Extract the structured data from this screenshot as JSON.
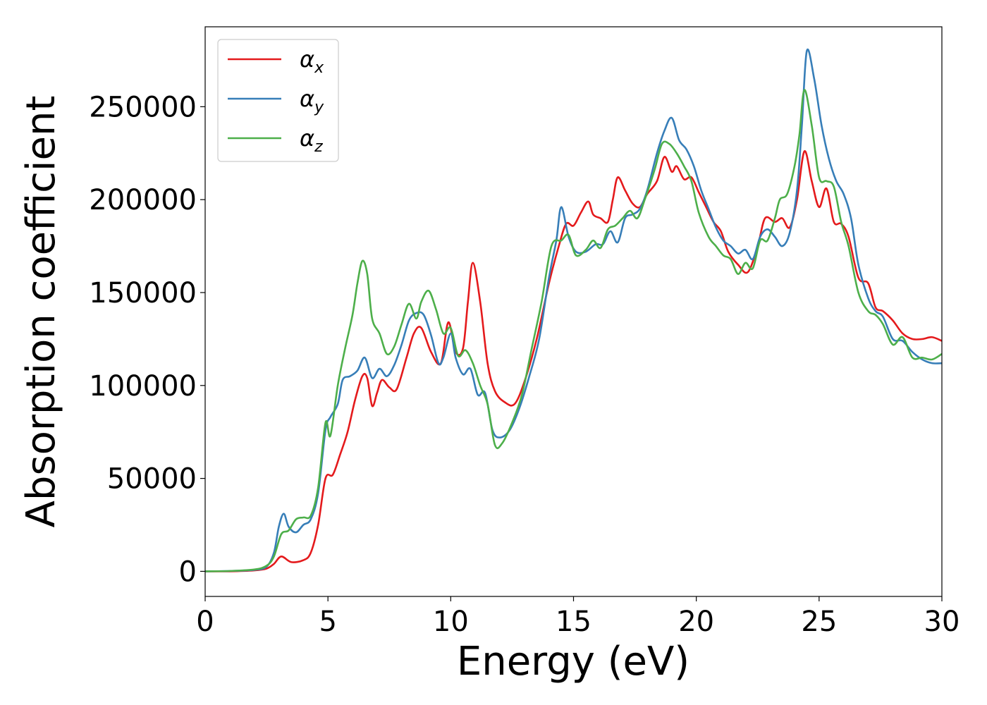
{
  "chart_data": {
    "type": "line",
    "title": "",
    "xlabel": "Energy (eV)",
    "ylabel": "Absorption coefficient",
    "xlim": [
      0,
      30
    ],
    "ylim": [
      -13500,
      293000
    ],
    "xticks": [
      0,
      5,
      10,
      15,
      20,
      25,
      30
    ],
    "xtick_labels": [
      "0",
      "5",
      "10",
      "15",
      "20",
      "25",
      "30"
    ],
    "yticks": [
      0,
      50000,
      100000,
      150000,
      200000,
      250000
    ],
    "ytick_labels": [
      "0",
      "50000",
      "100000",
      "150000",
      "200000",
      "250000"
    ],
    "grid": false,
    "legend_position": "top-left",
    "series": [
      {
        "name": "α",
        "subscript": "x",
        "color": "#e41a1c",
        "points": [
          [
            0,
            0
          ],
          [
            1,
            0
          ],
          [
            2,
            500
          ],
          [
            2.5,
            1500
          ],
          [
            2.8,
            4000
          ],
          [
            3.1,
            8000
          ],
          [
            3.5,
            5000
          ],
          [
            4,
            6000
          ],
          [
            4.3,
            10000
          ],
          [
            4.6,
            25000
          ],
          [
            4.9,
            50000
          ],
          [
            5.2,
            52000
          ],
          [
            5.5,
            63000
          ],
          [
            5.8,
            75000
          ],
          [
            6.1,
            92000
          ],
          [
            6.4,
            105000
          ],
          [
            6.6,
            104000
          ],
          [
            6.8,
            89000
          ],
          [
            7,
            96000
          ],
          [
            7.2,
            103000
          ],
          [
            7.5,
            99000
          ],
          [
            7.8,
            98000
          ],
          [
            8.2,
            115000
          ],
          [
            8.5,
            128000
          ],
          [
            8.8,
            131000
          ],
          [
            9.2,
            118000
          ],
          [
            9.6,
            112000
          ],
          [
            9.9,
            134000
          ],
          [
            10.2,
            118000
          ],
          [
            10.5,
            120000
          ],
          [
            10.7,
            145000
          ],
          [
            10.9,
            166000
          ],
          [
            11.2,
            145000
          ],
          [
            11.5,
            112000
          ],
          [
            11.8,
            97000
          ],
          [
            12.2,
            91000
          ],
          [
            12.6,
            90000
          ],
          [
            13,
            102000
          ],
          [
            13.5,
            125000
          ],
          [
            14,
            155000
          ],
          [
            14.4,
            175000
          ],
          [
            14.7,
            187000
          ],
          [
            15,
            186000
          ],
          [
            15.3,
            193000
          ],
          [
            15.6,
            199000
          ],
          [
            15.8,
            192000
          ],
          [
            16.1,
            190000
          ],
          [
            16.4,
            188000
          ],
          [
            16.6,
            200000
          ],
          [
            16.8,
            212000
          ],
          [
            17.1,
            205000
          ],
          [
            17.4,
            198000
          ],
          [
            17.7,
            196000
          ],
          [
            18,
            203000
          ],
          [
            18.4,
            210000
          ],
          [
            18.7,
            223000
          ],
          [
            19,
            215000
          ],
          [
            19.2,
            218000
          ],
          [
            19.5,
            211000
          ],
          [
            19.8,
            212000
          ],
          [
            20.1,
            204000
          ],
          [
            20.4,
            196000
          ],
          [
            20.7,
            188000
          ],
          [
            21,
            183000
          ],
          [
            21.3,
            172000
          ],
          [
            21.7,
            165000
          ],
          [
            22.1,
            161000
          ],
          [
            22.5,
            175000
          ],
          [
            22.8,
            190000
          ],
          [
            23.2,
            188000
          ],
          [
            23.5,
            190000
          ],
          [
            23.8,
            185000
          ],
          [
            24.1,
            200000
          ],
          [
            24.4,
            226000
          ],
          [
            24.7,
            210000
          ],
          [
            25,
            196000
          ],
          [
            25.3,
            206000
          ],
          [
            25.6,
            188000
          ],
          [
            25.9,
            187000
          ],
          [
            26.2,
            180000
          ],
          [
            26.6,
            158000
          ],
          [
            27,
            155000
          ],
          [
            27.3,
            142000
          ],
          [
            27.6,
            140000
          ],
          [
            28,
            135000
          ],
          [
            28.4,
            128000
          ],
          [
            28.8,
            125000
          ],
          [
            29.2,
            125000
          ],
          [
            29.6,
            126000
          ],
          [
            30,
            124000
          ]
        ]
      },
      {
        "name": "α",
        "subscript": "y",
        "color": "#377eb8",
        "points": [
          [
            0,
            0
          ],
          [
            1,
            200
          ],
          [
            2,
            800
          ],
          [
            2.5,
            2500
          ],
          [
            2.8,
            10000
          ],
          [
            3,
            24000
          ],
          [
            3.2,
            31000
          ],
          [
            3.4,
            24000
          ],
          [
            3.7,
            21000
          ],
          [
            4,
            25000
          ],
          [
            4.3,
            28000
          ],
          [
            4.6,
            42000
          ],
          [
            4.9,
            76000
          ],
          [
            5.1,
            83000
          ],
          [
            5.4,
            90000
          ],
          [
            5.6,
            103000
          ],
          [
            5.9,
            105000
          ],
          [
            6.2,
            108000
          ],
          [
            6.5,
            115000
          ],
          [
            6.8,
            104000
          ],
          [
            7.1,
            109000
          ],
          [
            7.4,
            105000
          ],
          [
            7.7,
            111000
          ],
          [
            8,
            122000
          ],
          [
            8.3,
            135000
          ],
          [
            8.6,
            139000
          ],
          [
            8.9,
            138000
          ],
          [
            9.2,
            127000
          ],
          [
            9.5,
            112000
          ],
          [
            9.7,
            115000
          ],
          [
            10,
            128000
          ],
          [
            10.2,
            115000
          ],
          [
            10.5,
            106000
          ],
          [
            10.8,
            109000
          ],
          [
            11.1,
            95000
          ],
          [
            11.4,
            96000
          ],
          [
            11.7,
            76000
          ],
          [
            12,
            72000
          ],
          [
            12.4,
            76000
          ],
          [
            12.8,
            88000
          ],
          [
            13.2,
            105000
          ],
          [
            13.6,
            125000
          ],
          [
            14,
            158000
          ],
          [
            14.3,
            178000
          ],
          [
            14.5,
            196000
          ],
          [
            14.8,
            180000
          ],
          [
            15.1,
            172000
          ],
          [
            15.5,
            172000
          ],
          [
            15.9,
            176000
          ],
          [
            16.2,
            176000
          ],
          [
            16.5,
            183000
          ],
          [
            16.8,
            177000
          ],
          [
            17.1,
            190000
          ],
          [
            17.4,
            192000
          ],
          [
            17.7,
            195000
          ],
          [
            18,
            205000
          ],
          [
            18.4,
            225000
          ],
          [
            18.7,
            237000
          ],
          [
            19,
            244000
          ],
          [
            19.3,
            232000
          ],
          [
            19.6,
            227000
          ],
          [
            19.9,
            218000
          ],
          [
            20.2,
            205000
          ],
          [
            20.5,
            195000
          ],
          [
            20.8,
            185000
          ],
          [
            21.1,
            178000
          ],
          [
            21.4,
            175000
          ],
          [
            21.7,
            171000
          ],
          [
            22,
            173000
          ],
          [
            22.3,
            168000
          ],
          [
            22.6,
            180000
          ],
          [
            22.9,
            184000
          ],
          [
            23.2,
            180000
          ],
          [
            23.5,
            175000
          ],
          [
            23.8,
            182000
          ],
          [
            24.1,
            205000
          ],
          [
            24.3,
            240000
          ],
          [
            24.5,
            280000
          ],
          [
            24.8,
            265000
          ],
          [
            25.1,
            240000
          ],
          [
            25.4,
            222000
          ],
          [
            25.7,
            210000
          ],
          [
            26,
            203000
          ],
          [
            26.3,
            190000
          ],
          [
            26.6,
            165000
          ],
          [
            27,
            147000
          ],
          [
            27.3,
            140000
          ],
          [
            27.6,
            137000
          ],
          [
            28,
            125000
          ],
          [
            28.4,
            124000
          ],
          [
            28.8,
            118000
          ],
          [
            29.2,
            114000
          ],
          [
            29.6,
            112000
          ],
          [
            30,
            112000
          ]
        ]
      },
      {
        "name": "α",
        "subscript": "z",
        "color": "#4daf4a",
        "points": [
          [
            0,
            0
          ],
          [
            1,
            200
          ],
          [
            2,
            1000
          ],
          [
            2.5,
            3000
          ],
          [
            2.8,
            8000
          ],
          [
            3.1,
            20000
          ],
          [
            3.4,
            22000
          ],
          [
            3.7,
            28000
          ],
          [
            4,
            29000
          ],
          [
            4.3,
            30000
          ],
          [
            4.6,
            45000
          ],
          [
            4.9,
            80000
          ],
          [
            5.1,
            73000
          ],
          [
            5.4,
            100000
          ],
          [
            5.7,
            120000
          ],
          [
            6,
            138000
          ],
          [
            6.2,
            155000
          ],
          [
            6.4,
            167000
          ],
          [
            6.6,
            160000
          ],
          [
            6.8,
            136000
          ],
          [
            7.1,
            128000
          ],
          [
            7.4,
            117000
          ],
          [
            7.7,
            121000
          ],
          [
            8,
            133000
          ],
          [
            8.3,
            144000
          ],
          [
            8.6,
            136000
          ],
          [
            8.8,
            145000
          ],
          [
            9.1,
            151000
          ],
          [
            9.4,
            141000
          ],
          [
            9.7,
            128000
          ],
          [
            10,
            131000
          ],
          [
            10.3,
            116000
          ],
          [
            10.6,
            119000
          ],
          [
            10.9,
            112000
          ],
          [
            11.2,
            100000
          ],
          [
            11.5,
            90000
          ],
          [
            11.8,
            68000
          ],
          [
            12.1,
            69000
          ],
          [
            12.5,
            80000
          ],
          [
            12.9,
            95000
          ],
          [
            13.3,
            120000
          ],
          [
            13.7,
            145000
          ],
          [
            14.1,
            175000
          ],
          [
            14.5,
            178000
          ],
          [
            14.8,
            181000
          ],
          [
            15.1,
            170000
          ],
          [
            15.5,
            173000
          ],
          [
            15.8,
            178000
          ],
          [
            16.1,
            174000
          ],
          [
            16.4,
            184000
          ],
          [
            16.7,
            186000
          ],
          [
            17,
            190000
          ],
          [
            17.3,
            194000
          ],
          [
            17.6,
            190000
          ],
          [
            17.9,
            200000
          ],
          [
            18.3,
            216000
          ],
          [
            18.6,
            230000
          ],
          [
            18.9,
            230000
          ],
          [
            19.2,
            225000
          ],
          [
            19.5,
            218000
          ],
          [
            19.8,
            210000
          ],
          [
            20.1,
            193000
          ],
          [
            20.5,
            180000
          ],
          [
            20.8,
            175000
          ],
          [
            21.1,
            170000
          ],
          [
            21.4,
            168000
          ],
          [
            21.7,
            160000
          ],
          [
            22,
            166000
          ],
          [
            22.3,
            163000
          ],
          [
            22.6,
            178000
          ],
          [
            22.9,
            178000
          ],
          [
            23.2,
            190000
          ],
          [
            23.4,
            200000
          ],
          [
            23.7,
            203000
          ],
          [
            24,
            218000
          ],
          [
            24.2,
            235000
          ],
          [
            24.4,
            259000
          ],
          [
            24.7,
            240000
          ],
          [
            25,
            212000
          ],
          [
            25.3,
            210000
          ],
          [
            25.6,
            207000
          ],
          [
            25.9,
            188000
          ],
          [
            26.2,
            175000
          ],
          [
            26.6,
            150000
          ],
          [
            27,
            140000
          ],
          [
            27.3,
            138000
          ],
          [
            27.6,
            133000
          ],
          [
            28,
            122000
          ],
          [
            28.4,
            126000
          ],
          [
            28.8,
            115000
          ],
          [
            29.2,
            115000
          ],
          [
            29.6,
            114000
          ],
          [
            30,
            117000
          ]
        ]
      }
    ]
  }
}
